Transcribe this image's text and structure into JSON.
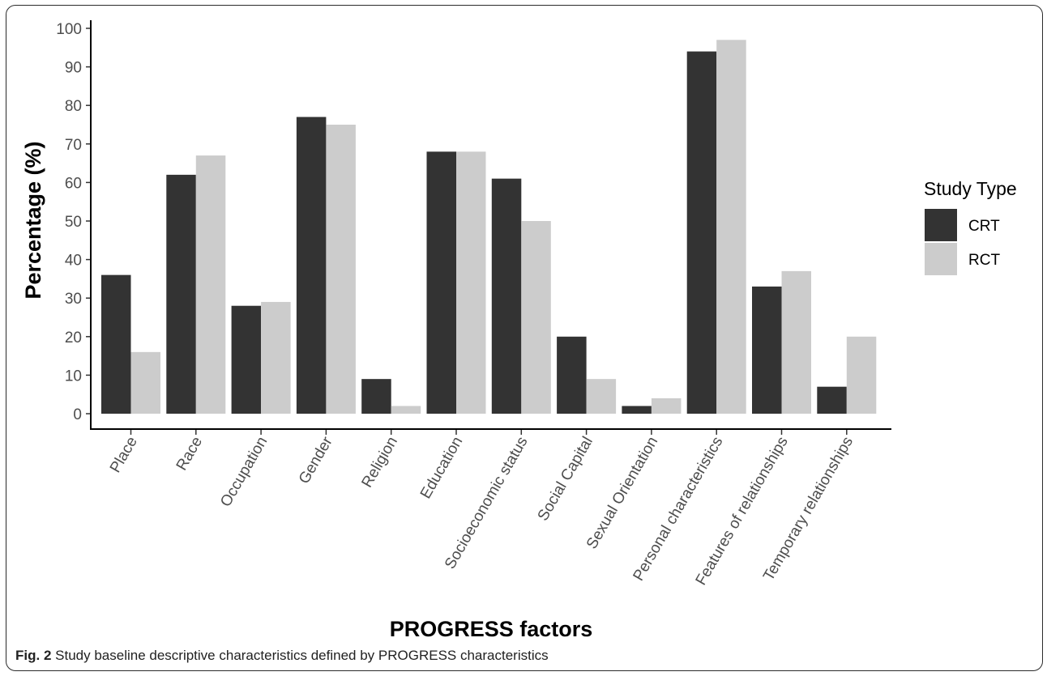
{
  "chart_data": {
    "type": "bar",
    "xlabel": "PROGRESS factors",
    "ylabel": "Percentage (%)",
    "ylim": [
      0,
      100
    ],
    "yticks": [
      0,
      10,
      20,
      30,
      40,
      50,
      60,
      70,
      80,
      90,
      100
    ],
    "grid": false,
    "categories": [
      "Place",
      "Race",
      "Occupation",
      "Gender",
      "Religion",
      "Education",
      "Socioeconomic status",
      "Social Capital",
      "Sexual Orientation",
      "Personal characteristics",
      "Features of relationships",
      "Temporary relationships"
    ],
    "legend": {
      "title": "Study Type",
      "placement": "right"
    },
    "series": [
      {
        "name": "CRT",
        "color": "#333333",
        "values": [
          36,
          62,
          28,
          77,
          9,
          68,
          61,
          20,
          2,
          94,
          33,
          7
        ]
      },
      {
        "name": "RCT",
        "color": "#cccccc",
        "values": [
          16,
          67,
          29,
          75,
          2,
          68,
          50,
          9,
          4,
          97,
          37,
          20
        ]
      }
    ]
  },
  "caption": {
    "label": "Fig. 2",
    "text": "Study baseline descriptive characteristics defined by PROGRESS characteristics"
  }
}
